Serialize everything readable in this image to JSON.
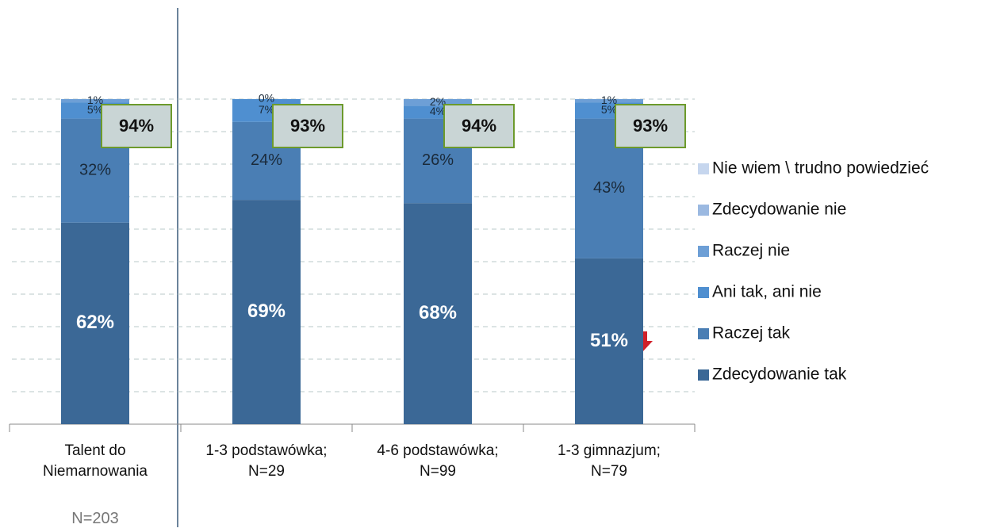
{
  "chart_data": {
    "type": "stacked_bar",
    "categories": [
      "Talent do Niemarnowania",
      "1-3 podstawówka; N=29",
      "4-6 podstawówka; N=99",
      "1-3 gimnazjum; N=79"
    ],
    "note": "N=203",
    "series": [
      {
        "name": "Zdecydowanie tak",
        "color": "#3b6896",
        "values": [
          62,
          69,
          68,
          51
        ],
        "value_labels": [
          "62%",
          "69%",
          "68%",
          "51%"
        ]
      },
      {
        "name": "Raczej tak",
        "color": "#4a7eb4",
        "values": [
          32,
          24,
          26,
          43
        ],
        "value_labels": [
          "32%",
          "24%",
          "26%",
          "43%"
        ]
      },
      {
        "name": "Ani tak, ani nie",
        "color": "#4f8fd0",
        "values": [
          5,
          7,
          4,
          5
        ],
        "value_labels": [
          "5%",
          "7%",
          "4%",
          "5%"
        ]
      },
      {
        "name": "Raczej nie",
        "color": "#6d9fd6",
        "values": [
          1,
          0,
          2,
          1
        ],
        "value_labels": [
          "1%",
          "0%",
          "2%",
          "1%"
        ]
      },
      {
        "name": "Zdecydowanie nie",
        "color": "#9bb9e1",
        "values": [
          0,
          0,
          0,
          0
        ],
        "value_labels": [
          null,
          null,
          null,
          null
        ]
      },
      {
        "name": "Nie wiem \\ trudno powiedzieć",
        "color": "#c6d6ee",
        "values": [
          0,
          0,
          0,
          0
        ],
        "value_labels": [
          null,
          null,
          null,
          null
        ]
      }
    ],
    "totals": {
      "values": [
        94,
        93,
        94,
        93
      ],
      "labels": [
        "94%",
        "93%",
        "94%",
        "93%"
      ]
    },
    "ylim": [
      0,
      100
    ],
    "yticks": [
      10,
      20,
      30,
      40,
      50,
      60,
      70,
      80,
      90,
      100
    ],
    "grid": true
  }
}
